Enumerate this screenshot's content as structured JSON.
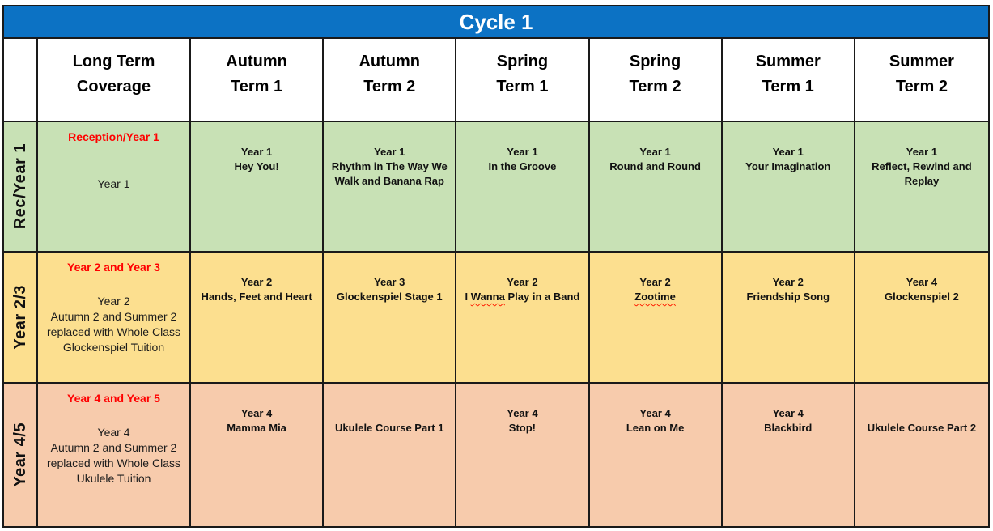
{
  "title": "Cycle 1",
  "colors": {
    "blue_bar": "#0C72C4",
    "green_row": "#C8E1B5",
    "yellow_row": "#FCDF8F",
    "salmon_row": "#F7CBAC",
    "red_text": "#FF0000",
    "border": "#1A1A1A"
  },
  "header": {
    "columns": [
      [
        "Long Term",
        "Coverage"
      ],
      [
        "Autumn",
        "Term 1"
      ],
      [
        "Autumn",
        "Term 2"
      ],
      [
        "Spring",
        "Term 1"
      ],
      [
        "Spring",
        "Term 2"
      ],
      [
        "Summer",
        "Term 1"
      ],
      [
        "Summer",
        "Term 2"
      ]
    ]
  },
  "rows": [
    {
      "label": "Rec/Year 1",
      "coverage": {
        "heading": "Reception/Year 1",
        "sub1": "Year 1",
        "sub2": ""
      },
      "cells": [
        {
          "t1": "Year 1",
          "t2a": "Hey You!",
          "t2b": "",
          "t2c": ""
        },
        {
          "t1": "Year 1",
          "t2a": "Rhythm in The Way We Walk and Banana Rap",
          "t2b": "",
          "t2c": ""
        },
        {
          "t1": "Year 1",
          "t2a": "In the Groove",
          "t2b": "",
          "t2c": ""
        },
        {
          "t1": "Year 1",
          "t2a": "Round and Round",
          "t2b": "",
          "t2c": ""
        },
        {
          "t1": "Year 1",
          "t2a": "Your Imagination",
          "t2b": "",
          "t2c": ""
        },
        {
          "t1": "Year 1",
          "t2a": "Reflect, Rewind and Replay",
          "t2b": "",
          "t2c": ""
        }
      ]
    },
    {
      "label": "Year 2/3",
      "coverage": {
        "heading": "Year 2 and Year 3",
        "sub1": "Year 2",
        "sub2": "Autumn 2 and Summer 2 replaced with Whole Class Glockenspiel Tuition"
      },
      "cells": [
        {
          "t1": "Year 2",
          "t2a": "Hands, Feet and Heart",
          "t2b": "",
          "t2c": ""
        },
        {
          "t1": "Year 3",
          "t2a": "Glockenspiel Stage 1",
          "t2b": "",
          "t2c": ""
        },
        {
          "t1": "Year 2",
          "t2a": "I ",
          "t2b": "Wanna",
          "t2c": " Play in a Band"
        },
        {
          "t1": "Year 2",
          "t2a": "",
          "t2b": "Zootime",
          "t2c": ""
        },
        {
          "t1": "Year 2",
          "t2a": "Friendship Song",
          "t2b": "",
          "t2c": ""
        },
        {
          "t1": "Year 4",
          "t2a": "Glockenspiel 2",
          "t2b": "",
          "t2c": ""
        }
      ]
    },
    {
      "label": "Year 4/5",
      "coverage": {
        "heading": "Year 4 and Year 5",
        "sub1": "Year 4",
        "sub2": "Autumn 2 and Summer 2 replaced with Whole Class Ukulele Tuition"
      },
      "cells": [
        {
          "t1": "Year 4",
          "t2a": "Mamma Mia",
          "t2b": "",
          "t2c": ""
        },
        {
          "t1": "",
          "t2a": "Ukulele Course Part 1",
          "t2b": "",
          "t2c": ""
        },
        {
          "t1": "Year 4",
          "t2a": "Stop!",
          "t2b": "",
          "t2c": ""
        },
        {
          "t1": "Year 4",
          "t2a": "Lean on Me",
          "t2b": "",
          "t2c": ""
        },
        {
          "t1": "Year 4",
          "t2a": "Blackbird",
          "t2b": "",
          "t2c": ""
        },
        {
          "t1": "",
          "t2a": "Ukulele Course Part 2",
          "t2b": "",
          "t2c": ""
        }
      ]
    }
  ]
}
